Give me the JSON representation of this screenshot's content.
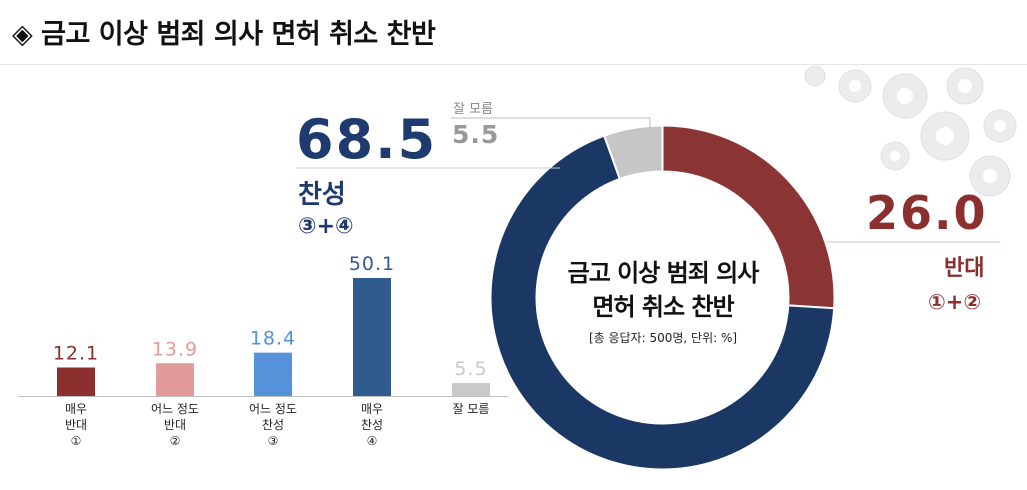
{
  "title": "◈ 금고 이상 범죄 의사 면허 취소 찬반",
  "chart_data": [
    {
      "type": "bar",
      "categories": [
        "매우 반대 ①",
        "어느 정도 반대 ②",
        "어느 정도 찬성 ③",
        "매우 찬성 ④",
        "잘 모름"
      ],
      "category_lines": [
        [
          "매우",
          "반대",
          "①"
        ],
        [
          "어느 정도",
          "반대",
          "②"
        ],
        [
          "어느 정도",
          "찬성",
          "③"
        ],
        [
          "매우",
          "찬성",
          "④"
        ],
        [
          "잘 모름"
        ]
      ],
      "values": [
        12.1,
        13.9,
        18.4,
        50.1,
        5.5
      ],
      "value_labels": [
        "12.1",
        "13.9",
        "18.4",
        "50.1",
        "5.5"
      ],
      "colors": [
        "#8b2f2f",
        "#e39a9a",
        "#5592d9",
        "#2f5b8f",
        "#c9c9c9"
      ],
      "ylim": [
        0,
        55
      ]
    },
    {
      "type": "pie",
      "title_lines": [
        "금고 이상 범죄 의사",
        "면허 취소 찬반"
      ],
      "subtitle": "[총 응답자: 500명, 단위: %]",
      "slices": [
        {
          "name": "반대",
          "value": 26.0,
          "value_label": "26.0",
          "sum_label": "①+②",
          "color": "#8b3434"
        },
        {
          "name": "찬성",
          "value": 68.5,
          "value_label": "68.5",
          "sum_label": "③+④",
          "color": "#1b3764"
        },
        {
          "name": "잘 모름",
          "value": 5.5,
          "value_label": "5.5",
          "color": "#c6c6c6"
        }
      ]
    }
  ]
}
